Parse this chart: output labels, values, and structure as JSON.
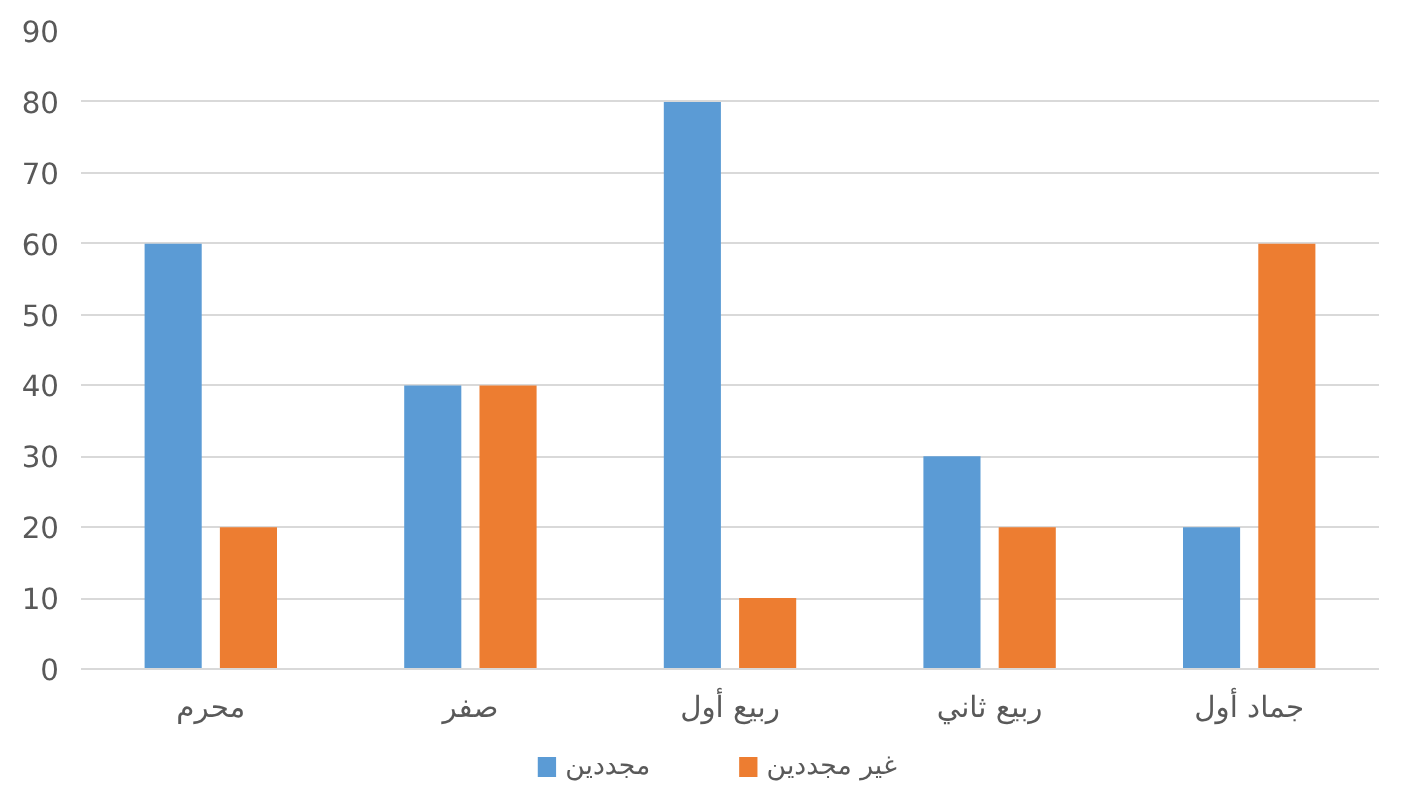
{
  "chart_data": {
    "type": "bar",
    "categories": [
      "محرم",
      "صفر",
      "ربيع أول",
      "ربيع ثاني",
      "جماد أول"
    ],
    "series": [
      {
        "name": "مجددين",
        "color": "#5b9bd5",
        "values": [
          60,
          40,
          80,
          30,
          20
        ]
      },
      {
        "name": "غير مجددين",
        "color": "#ed7d31",
        "values": [
          20,
          40,
          10,
          20,
          60
        ]
      }
    ],
    "ylim": [
      0,
      90
    ],
    "yticks": [
      0,
      10,
      20,
      30,
      40,
      50,
      60,
      70,
      80,
      90
    ],
    "grid": "y",
    "legend": "bottom"
  }
}
